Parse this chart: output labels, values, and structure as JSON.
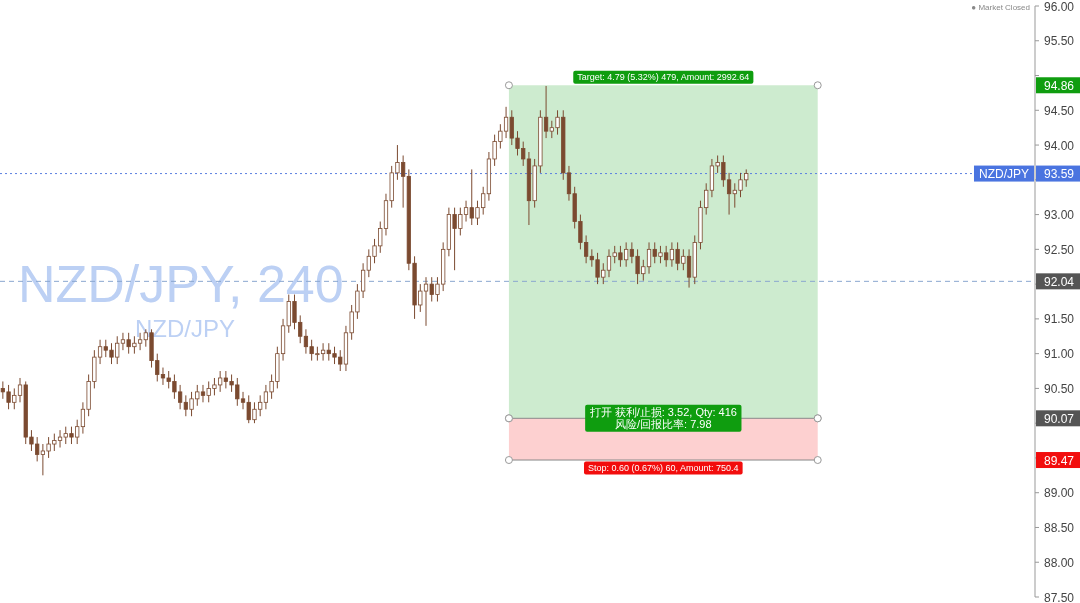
{
  "chart_data": {
    "type": "candlestick",
    "title": "NZD/JPY, 240",
    "subtitle": "NZD/JPY",
    "color": "#7b4a30",
    "categories": [
      null,
      null,
      null,
      null,
      null,
      null,
      null,
      null,
      null,
      null,
      null,
      null,
      null,
      null,
      null,
      null,
      null,
      null,
      null,
      null,
      null,
      null,
      null,
      null,
      null,
      null,
      null,
      null,
      null,
      null,
      null,
      null,
      null,
      null,
      null,
      null,
      null,
      null,
      null,
      null,
      null,
      null,
      null,
      null,
      null,
      null,
      null,
      null,
      null,
      null,
      null,
      null,
      null,
      null,
      null,
      null,
      null,
      null,
      null,
      null,
      null,
      null,
      null,
      null,
      null,
      null,
      null,
      null,
      null,
      null,
      null,
      null,
      null,
      null,
      null,
      null,
      null,
      null,
      null,
      null,
      null,
      null,
      null,
      null,
      null,
      null,
      null,
      null,
      null,
      null,
      null,
      null,
      null,
      null,
      null,
      null,
      null,
      null,
      null,
      null,
      null,
      null,
      null,
      null,
      null,
      null,
      null,
      null,
      null,
      null,
      null,
      null,
      null,
      null,
      null,
      null,
      null,
      null,
      null,
      null,
      null,
      null,
      null,
      null,
      null,
      null,
      null,
      null,
      null,
      null,
      null,
      null,
      null,
      null,
      null,
      null,
      null,
      null,
      null,
      null,
      null,
      null,
      null,
      null,
      null,
      null,
      null,
      null,
      null,
      null,
      null,
      null,
      null,
      null,
      null,
      null,
      null,
      null,
      null,
      null,
      null,
      null,
      null,
      null,
      null,
      null,
      null,
      null,
      null,
      null,
      null,
      null,
      null,
      null,
      null,
      null,
      null,
      null,
      null,
      null,
      null
    ],
    "ohlc": [
      [
        90.5,
        90.6,
        90.35,
        90.45
      ],
      [
        90.45,
        90.55,
        90.2,
        90.3
      ],
      [
        90.3,
        90.5,
        90.2,
        90.4
      ],
      [
        90.4,
        90.65,
        90.3,
        90.55
      ],
      [
        90.55,
        90.6,
        89.7,
        89.8
      ],
      [
        89.8,
        89.9,
        89.6,
        89.7
      ],
      [
        89.7,
        89.8,
        89.45,
        89.55
      ],
      [
        89.55,
        89.7,
        89.25,
        89.6
      ],
      [
        89.6,
        89.8,
        89.5,
        89.7
      ],
      [
        89.7,
        89.85,
        89.6,
        89.75
      ],
      [
        89.75,
        89.9,
        89.65,
        89.8
      ],
      [
        89.8,
        89.95,
        89.7,
        89.85
      ],
      [
        89.85,
        89.95,
        89.7,
        89.8
      ],
      [
        89.8,
        90.05,
        89.7,
        89.95
      ],
      [
        89.95,
        90.3,
        89.85,
        90.2
      ],
      [
        90.2,
        90.7,
        90.1,
        90.6
      ],
      [
        90.6,
        91.05,
        90.5,
        90.95
      ],
      [
        90.95,
        91.2,
        90.85,
        91.1
      ],
      [
        91.1,
        91.2,
        90.95,
        91.05
      ],
      [
        91.05,
        91.15,
        90.85,
        90.95
      ],
      [
        90.95,
        91.25,
        90.85,
        91.15
      ],
      [
        91.15,
        91.3,
        91.05,
        91.2
      ],
      [
        91.2,
        91.3,
        91.0,
        91.1
      ],
      [
        91.1,
        91.25,
        91.0,
        91.15
      ],
      [
        91.15,
        91.3,
        91.05,
        91.2
      ],
      [
        91.2,
        91.35,
        91.1,
        91.3
      ],
      [
        91.3,
        91.35,
        90.8,
        90.9
      ],
      [
        90.9,
        91.0,
        90.6,
        90.7
      ],
      [
        90.7,
        90.8,
        90.55,
        90.65
      ],
      [
        90.65,
        90.75,
        90.5,
        90.6
      ],
      [
        90.6,
        90.7,
        90.35,
        90.45
      ],
      [
        90.45,
        90.55,
        90.2,
        90.3
      ],
      [
        90.3,
        90.4,
        90.1,
        90.2
      ],
      [
        90.2,
        90.45,
        90.1,
        90.35
      ],
      [
        90.35,
        90.55,
        90.25,
        90.45
      ],
      [
        90.45,
        90.55,
        90.3,
        90.4
      ],
      [
        90.4,
        90.6,
        90.3,
        90.5
      ],
      [
        90.5,
        90.65,
        90.4,
        90.55
      ],
      [
        90.55,
        90.75,
        90.45,
        90.65
      ],
      [
        90.65,
        90.75,
        90.5,
        90.6
      ],
      [
        90.6,
        90.7,
        90.45,
        90.55
      ],
      [
        90.55,
        90.65,
        90.25,
        90.35
      ],
      [
        90.35,
        90.45,
        90.2,
        90.3
      ],
      [
        90.3,
        90.4,
        90.0,
        90.05
      ],
      [
        90.05,
        90.3,
        90.0,
        90.2
      ],
      [
        90.2,
        90.4,
        90.1,
        90.3
      ],
      [
        90.3,
        90.55,
        90.2,
        90.45
      ],
      [
        90.45,
        90.7,
        90.35,
        90.6
      ],
      [
        90.6,
        91.1,
        90.5,
        91.0
      ],
      [
        91.0,
        91.5,
        90.9,
        91.4
      ],
      [
        91.4,
        91.85,
        91.3,
        91.75
      ],
      [
        91.75,
        91.85,
        91.35,
        91.45
      ],
      [
        91.45,
        91.55,
        91.15,
        91.25
      ],
      [
        91.25,
        91.35,
        91.0,
        91.1
      ],
      [
        91.1,
        91.2,
        90.9,
        91.0
      ],
      [
        91.0,
        91.1,
        90.9,
        91.0
      ],
      [
        91.0,
        91.15,
        90.9,
        91.05
      ],
      [
        91.05,
        91.15,
        90.9,
        91.0
      ],
      [
        91.0,
        91.1,
        90.85,
        90.95
      ],
      [
        90.95,
        91.05,
        90.75,
        90.85
      ],
      [
        90.85,
        91.4,
        90.75,
        91.3
      ],
      [
        91.3,
        91.7,
        91.2,
        91.6
      ],
      [
        91.6,
        92.0,
        91.5,
        91.9
      ],
      [
        91.9,
        92.3,
        91.8,
        92.2
      ],
      [
        92.2,
        92.5,
        92.1,
        92.4
      ],
      [
        92.4,
        92.65,
        92.3,
        92.55
      ],
      [
        92.55,
        92.9,
        92.45,
        92.8
      ],
      [
        92.8,
        93.3,
        92.7,
        93.2
      ],
      [
        93.2,
        93.7,
        93.1,
        93.6
      ],
      [
        93.6,
        94.0,
        93.5,
        93.75
      ],
      [
        93.75,
        93.85,
        93.1,
        93.55
      ],
      [
        93.55,
        93.65,
        92.2,
        92.3
      ],
      [
        92.3,
        92.4,
        91.5,
        91.7
      ],
      [
        91.7,
        92.0,
        91.6,
        91.9
      ],
      [
        91.9,
        92.1,
        91.4,
        92.0
      ],
      [
        92.0,
        92.1,
        91.75,
        91.85
      ],
      [
        91.85,
        92.1,
        91.75,
        92.0
      ],
      [
        92.0,
        92.6,
        91.9,
        92.5
      ],
      [
        92.5,
        93.1,
        92.4,
        93.0
      ],
      [
        93.0,
        93.1,
        92.2,
        92.8
      ],
      [
        92.8,
        93.1,
        92.7,
        93.0
      ],
      [
        93.0,
        93.2,
        92.9,
        93.1
      ],
      [
        93.1,
        93.65,
        92.85,
        92.95
      ],
      [
        92.95,
        93.2,
        92.85,
        93.1
      ],
      [
        93.1,
        93.4,
        93.0,
        93.3
      ],
      [
        93.3,
        93.9,
        93.2,
        93.8
      ],
      [
        93.8,
        94.15,
        93.7,
        94.05
      ],
      [
        94.05,
        94.3,
        93.95,
        94.2
      ],
      [
        94.2,
        94.55,
        94.1,
        94.4
      ],
      [
        94.4,
        94.5,
        94.0,
        94.1
      ],
      [
        94.1,
        94.2,
        93.85,
        93.95
      ],
      [
        93.95,
        94.05,
        93.7,
        93.8
      ],
      [
        93.8,
        93.9,
        92.85,
        93.2
      ],
      [
        93.2,
        93.8,
        93.1,
        93.7
      ],
      [
        93.7,
        94.5,
        93.6,
        94.4
      ],
      [
        94.4,
        94.85,
        94.1,
        94.2
      ],
      [
        94.2,
        94.35,
        94.1,
        94.25
      ],
      [
        94.25,
        94.5,
        94.15,
        94.4
      ],
      [
        94.4,
        94.5,
        93.5,
        93.6
      ],
      [
        93.6,
        93.7,
        93.2,
        93.3
      ],
      [
        93.3,
        93.4,
        92.8,
        92.9
      ],
      [
        92.9,
        93.0,
        92.5,
        92.6
      ],
      [
        92.6,
        92.7,
        92.3,
        92.4
      ],
      [
        92.4,
        92.5,
        92.25,
        92.35
      ],
      [
        92.35,
        92.45,
        92.0,
        92.1
      ],
      [
        92.1,
        92.3,
        92.0,
        92.2
      ],
      [
        92.2,
        92.5,
        92.1,
        92.4
      ],
      [
        92.4,
        92.55,
        92.3,
        92.45
      ],
      [
        92.45,
        92.55,
        92.25,
        92.35
      ],
      [
        92.35,
        92.6,
        92.25,
        92.5
      ],
      [
        92.5,
        92.6,
        92.3,
        92.4
      ],
      [
        92.4,
        92.5,
        92.0,
        92.15
      ],
      [
        92.15,
        92.35,
        92.05,
        92.25
      ],
      [
        92.25,
        92.6,
        92.15,
        92.5
      ],
      [
        92.5,
        92.6,
        92.3,
        92.4
      ],
      [
        92.4,
        92.55,
        92.3,
        92.45
      ],
      [
        92.45,
        92.55,
        92.25,
        92.35
      ],
      [
        92.35,
        92.6,
        92.25,
        92.5
      ],
      [
        92.5,
        92.6,
        92.2,
        92.3
      ],
      [
        92.3,
        92.5,
        92.2,
        92.4
      ],
      [
        92.4,
        92.5,
        91.95,
        92.1
      ],
      [
        92.1,
        92.7,
        92.0,
        92.6
      ],
      [
        92.6,
        93.2,
        92.5,
        93.1
      ],
      [
        93.1,
        93.45,
        93.0,
        93.35
      ],
      [
        93.35,
        93.8,
        93.25,
        93.7
      ],
      [
        93.7,
        93.85,
        93.6,
        93.75
      ],
      [
        93.75,
        93.85,
        93.4,
        93.5
      ],
      [
        93.5,
        93.6,
        93.0,
        93.3
      ],
      [
        93.3,
        93.45,
        93.1,
        93.35
      ],
      [
        93.35,
        93.6,
        93.25,
        93.5
      ],
      [
        93.5,
        93.65,
        93.4,
        93.59
      ],
      null,
      null,
      null,
      null,
      null,
      null,
      null,
      null,
      null,
      null,
      null,
      null,
      null,
      null,
      null,
      null,
      null,
      null,
      null,
      null,
      null,
      null,
      null,
      null,
      null,
      null,
      null,
      null,
      null,
      null,
      null,
      null,
      null,
      null,
      null,
      null,
      null,
      null,
      null,
      null,
      null,
      null,
      null,
      null,
      null,
      null,
      null,
      null,
      null,
      null
    ],
    "ylim": [
      87.5,
      96.0
    ],
    "yticks": [
      {
        "value": 87.5,
        "label": "87.50"
      },
      {
        "value": 88,
        "label": "88.00"
      },
      {
        "value": 88.5,
        "label": "88.50"
      },
      {
        "value": 89,
        "label": "89.00"
      },
      {
        "value": 89.5,
        "label": null
      },
      {
        "value": 90,
        "label": null
      },
      {
        "value": 90.5,
        "label": "90.50"
      },
      {
        "value": 91,
        "label": "91.00"
      },
      {
        "value": 91.5,
        "label": "91.50"
      },
      {
        "value": 92,
        "label": null
      },
      {
        "value": 92.5,
        "label": "92.50"
      },
      {
        "value": 93,
        "label": "93.00"
      },
      {
        "value": 93.5,
        "label": null
      },
      {
        "value": 94,
        "label": "94.00"
      },
      {
        "value": 94.5,
        "label": "94.50"
      },
      {
        "value": 95,
        "label": null
      },
      {
        "value": 95.5,
        "label": "95.50"
      },
      {
        "value": 96,
        "label": "96.00"
      }
    ],
    "tick_labels": "y",
    "grid": false,
    "ref_lines": [
      {
        "axis": "y",
        "value": 93.59,
        "label": "NZD/JPY",
        "color": "#5b7fe0",
        "line_style": "dotted"
      },
      {
        "axis": "y",
        "value": 92.04,
        "color": "#8aa6cf",
        "line_style": "dashed"
      }
    ],
    "bands": [
      {
        "axis": "y",
        "from": 90.07,
        "to": 94.86,
        "label": "Target: 4.79 (5.32%) 479, Amount: 2992.64",
        "color": "#cdebcf"
      },
      {
        "axis": "y",
        "from": 89.47,
        "to": 90.07,
        "label": "Stop: 0.60 (0.67%) 60, Amount: 750.4",
        "color": "#fdd0d0"
      }
    ],
    "annotations": [
      {
        "text": "打开 获利/止损: 3.52, Qty: 416\n风险/回报比率: 7.98",
        "y": 90.07
      },
      "● Market Closed",
      {
        "text": "94.86",
        "y": 94.86
      },
      {
        "text": "93.59",
        "y": 93.59
      },
      {
        "text": "92.04",
        "y": 92.04
      },
      {
        "text": "90.07",
        "y": 90.07
      },
      {
        "text": "89.47",
        "y": 89.47
      }
    ]
  }
}
